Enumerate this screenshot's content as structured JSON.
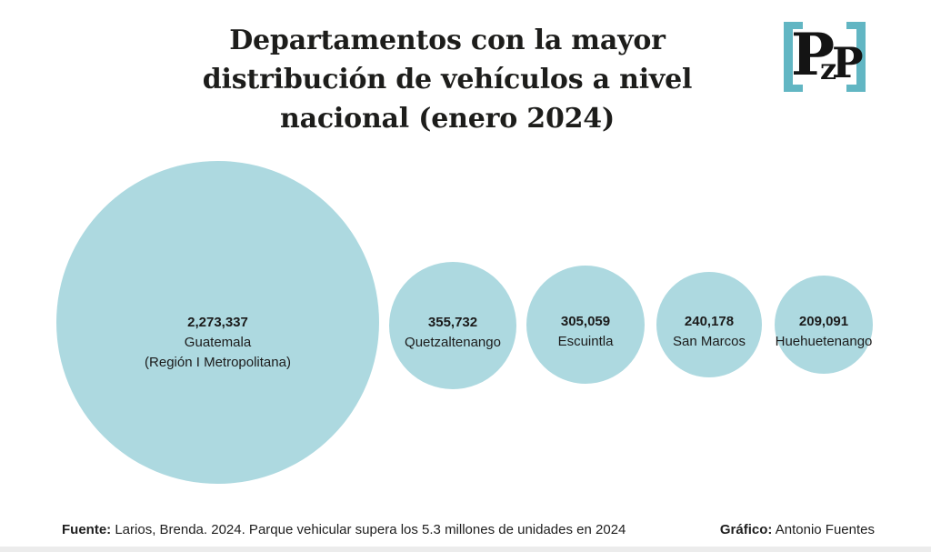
{
  "header": {
    "title_lines": [
      "Departamentos con la mayor",
      "distribución de vehículos a nivel",
      "nacional (enero 2024)"
    ],
    "logo": {
      "letter_1": "P",
      "letter_2": "z",
      "letter_3": "P",
      "bracket_color": "#62b6c3"
    }
  },
  "chart_data": {
    "type": "bubble",
    "title": "Departamentos con la mayor distribución de vehículos a nivel nacional (enero 2024)",
    "sizing": "area-proportional",
    "layout": "horizontal row, bubbles vertically centered, sorted descending left to right",
    "bubble_color": "#add9e0",
    "label_color": "#1b1b1b",
    "points": [
      {
        "label": "Guatemala",
        "sublabel": "(Región I Metropolitana)",
        "value": 2273337,
        "value_text": "2,273,337"
      },
      {
        "label": "Quetzaltenango",
        "value": 355732,
        "value_text": "355,732"
      },
      {
        "label": "Escuintla",
        "value": 305059,
        "value_text": "305,059"
      },
      {
        "label": "San Marcos",
        "value": 240178,
        "value_text": "240,178"
      },
      {
        "label": "Huehuetenango",
        "value": 209091,
        "value_text": "209,091"
      }
    ]
  },
  "footer": {
    "source_label": "Fuente:",
    "source_text": " Larios, Brenda. 2024. Parque vehicular supera los 5.3 millones de unidades en 2024",
    "credit_label": "Gráfico:",
    "credit_text": " Antonio Fuentes"
  }
}
